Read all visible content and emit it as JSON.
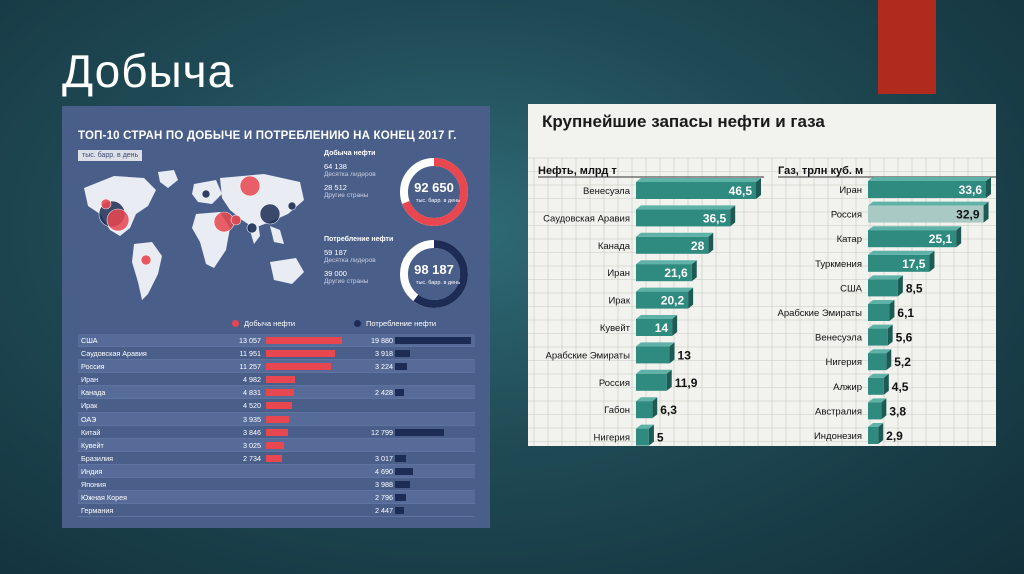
{
  "slide": {
    "title": "Добыча"
  },
  "infographic": {
    "title": "ТОП-10 СТРАН ПО ДОБЫЧЕ И ПОТРЕБЛЕНИЮ НА КОНЕЦ 2017 Г.",
    "unit": "тыс. барр. в день",
    "production": {
      "heading": "Добыча нефти",
      "top10_value": "64 138",
      "top10_label": "Десятка лидеров",
      "other_value": "28 512",
      "other_label": "Другие страны",
      "total": "92 650",
      "total_unit": "тыс. барр. в день"
    },
    "consumption": {
      "heading": "Потребление нефти",
      "top10_value": "59 187",
      "top10_label": "Десятка лидеров",
      "other_value": "39 000",
      "other_label": "Другие страны",
      "total": "98 187",
      "total_unit": "тыс. барр. в день"
    },
    "legend": {
      "production": "Добыча нефти",
      "consumption": "Потребление нефти"
    },
    "colors": {
      "production": "#e8474f",
      "consumption": "#1c2c55",
      "panel": "#4a5e8a"
    },
    "rows": [
      {
        "country": "США",
        "prod": "13 057",
        "cons": "19 880",
        "prod_v": 13057,
        "cons_v": 19880
      },
      {
        "country": "Саудовская Аравия",
        "prod": "11 951",
        "cons": "3 918",
        "prod_v": 11951,
        "cons_v": 3918
      },
      {
        "country": "Россия",
        "prod": "11 257",
        "cons": "3 224",
        "prod_v": 11257,
        "cons_v": 3224
      },
      {
        "country": "Иран",
        "prod": "4 982",
        "cons": "",
        "prod_v": 4982,
        "cons_v": 0
      },
      {
        "country": "Канада",
        "prod": "4 831",
        "cons": "2 428",
        "prod_v": 4831,
        "cons_v": 2428
      },
      {
        "country": "Ирак",
        "prod": "4 520",
        "cons": "",
        "prod_v": 4520,
        "cons_v": 0
      },
      {
        "country": "ОАЭ",
        "prod": "3 935",
        "cons": "",
        "prod_v": 3935,
        "cons_v": 0
      },
      {
        "country": "Китай",
        "prod": "3 846",
        "cons": "12 799",
        "prod_v": 3846,
        "cons_v": 12799
      },
      {
        "country": "Кувейт",
        "prod": "3 025",
        "cons": "",
        "prod_v": 3025,
        "cons_v": 0
      },
      {
        "country": "Бразилия",
        "prod": "2 734",
        "cons": "3 017",
        "prod_v": 2734,
        "cons_v": 3017
      },
      {
        "country": "Индия",
        "prod": "",
        "cons": "4 690",
        "prod_v": 0,
        "cons_v": 4690
      },
      {
        "country": "Япония",
        "prod": "",
        "cons": "3 988",
        "prod_v": 0,
        "cons_v": 3988
      },
      {
        "country": "Южная Корея",
        "prod": "",
        "cons": "2 796",
        "prod_v": 0,
        "cons_v": 2796
      },
      {
        "country": "Германия",
        "prod": "",
        "cons": "2 447",
        "prod_v": 0,
        "cons_v": 2447
      }
    ]
  },
  "chart_data": {
    "type": "bar",
    "title": "Крупнейшие запасы нефти и газа",
    "series": [
      {
        "name": "Нефть, млрд т",
        "categories": [
          "Венесуэла",
          "Саудовская Аравия",
          "Канада",
          "Иран",
          "Ирак",
          "Кувейт",
          "Арабские Эмираты",
          "Россия",
          "Габон",
          "Нигерия"
        ],
        "values": [
          46.5,
          36.5,
          28,
          21.6,
          20.2,
          14,
          13,
          11.9,
          6.3,
          5
        ],
        "labels": [
          "46,5",
          "36,5",
          "28",
          "21,6",
          "20,2",
          "14",
          "13",
          "11,9",
          "6,3",
          "5"
        ]
      },
      {
        "name": "Газ, трлн куб. м",
        "categories": [
          "Иран",
          "Россия",
          "Катар",
          "Туркмения",
          "США",
          "Арабские Эмираты",
          "Венесуэла",
          "Нигерия",
          "Алжир",
          "Австралия",
          "Индонезия"
        ],
        "values": [
          33.6,
          32.9,
          25.1,
          17.5,
          8.5,
          6.1,
          5.6,
          5.2,
          4.5,
          3.8,
          2.9
        ],
        "labels": [
          "33,6",
          "32,9",
          "25,1",
          "17,5",
          "8,5",
          "6,1",
          "5,6",
          "5,2",
          "4,5",
          "3,8",
          "2,9"
        ]
      }
    ],
    "grid": true,
    "colors": {
      "bar": "#2f8a80",
      "highlight": "#a8c9c4"
    }
  }
}
